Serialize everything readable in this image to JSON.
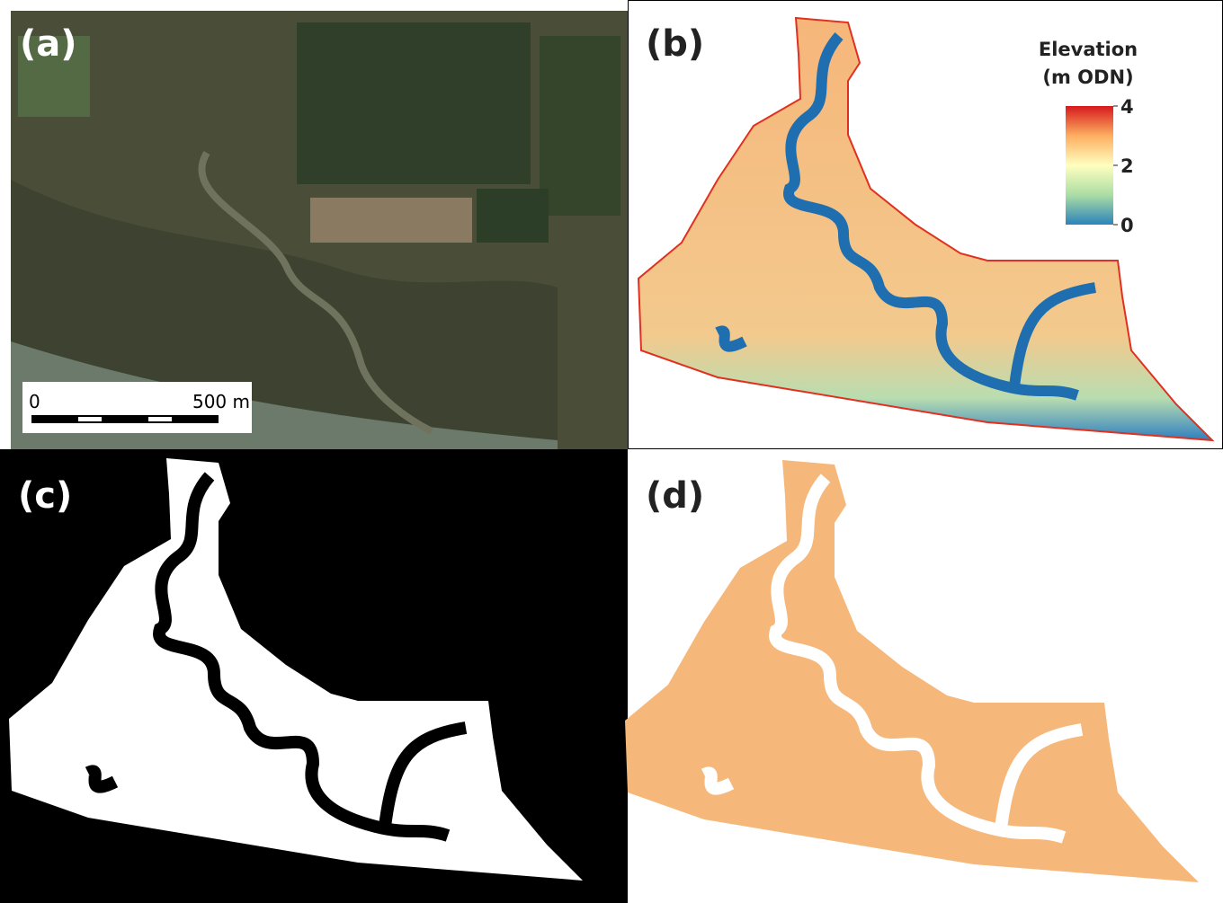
{
  "panels": [
    {
      "label": "(a)"
    },
    {
      "label": "(b)"
    },
    {
      "label": "(c)"
    },
    {
      "label": "(d)"
    }
  ],
  "scale_bar": {
    "start": "0",
    "end": "500 m"
  },
  "legend": {
    "title": [
      "Elevation",
      "(m ODN)"
    ],
    "range": [
      0,
      4
    ],
    "ticks": [
      0,
      2,
      4
    ]
  }
}
